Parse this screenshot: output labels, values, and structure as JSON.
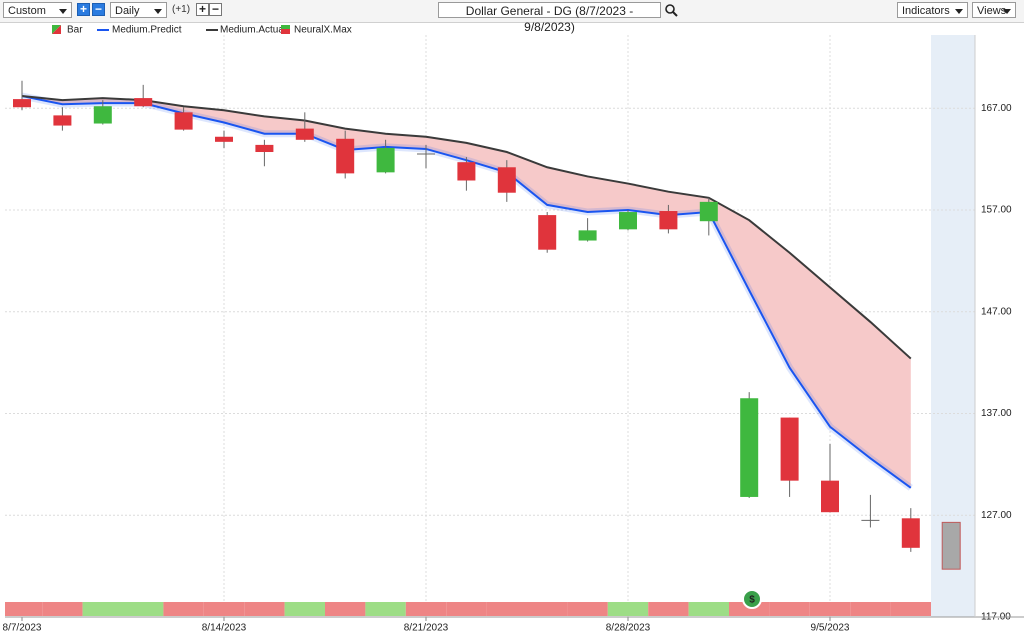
{
  "toolbar": {
    "range": "Custom",
    "interval": "Daily",
    "offset": "(+1)",
    "title": "Dollar General - DG (8/7/2023 - 9/8/2023)",
    "indicators": "Indicators",
    "views": "Views"
  },
  "chart_data": {
    "type": "candlestick",
    "categories": [
      "8/7/2023",
      null,
      null,
      null,
      null,
      "8/14/2023",
      null,
      null,
      null,
      null,
      "8/21/2023",
      null,
      null,
      null,
      null,
      "8/28/2023",
      null,
      null,
      null,
      null,
      "9/5/2023",
      null,
      null,
      null
    ],
    "ylim": [
      117,
      174.2
    ],
    "yticks": [
      {
        "value": 117,
        "label": "117.00"
      },
      {
        "value": 127,
        "label": "127.00"
      },
      {
        "value": 137,
        "label": "137.00"
      },
      {
        "value": 147,
        "label": "147.00"
      },
      {
        "value": 157,
        "label": "157.00"
      },
      {
        "value": 167,
        "label": "167.00"
      }
    ],
    "grid": true,
    "fill_between_color": "#f6c9c9",
    "forecast_color": "#a8a8a8",
    "forecast_shade": "#e6eef7",
    "series": [
      {
        "name": "Bar",
        "type": "candlestick",
        "up_color": "#3fb83f",
        "down_color": "#e0343c",
        "open": [
          167.9,
          166.3,
          165.5,
          168.0,
          166.6,
          164.2,
          163.4,
          165.0,
          164.0,
          160.7,
          162.5,
          161.7,
          161.2,
          156.5,
          154.0,
          155.1,
          156.9,
          155.9,
          128.8,
          136.6,
          130.4,
          126.5,
          126.7,
          126.3
        ],
        "high": [
          169.7,
          167.1,
          167.8,
          169.3,
          167.1,
          164.8,
          163.9,
          166.6,
          164.8,
          163.9,
          163.4,
          162.2,
          161.9,
          156.8,
          156.2,
          157.0,
          157.5,
          158.2,
          139.1,
          136.6,
          134.0,
          129.0,
          127.7,
          126.3
        ],
        "low": [
          166.8,
          164.8,
          165.4,
          167.1,
          164.8,
          163.1,
          161.3,
          163.7,
          160.1,
          160.6,
          161.1,
          158.9,
          157.8,
          152.8,
          153.9,
          155.0,
          154.7,
          154.5,
          128.7,
          128.8,
          127.3,
          125.8,
          123.4,
          121.7
        ],
        "close": [
          167.1,
          165.3,
          167.2,
          167.2,
          164.9,
          163.7,
          162.7,
          163.9,
          160.6,
          163.1,
          162.5,
          159.9,
          158.7,
          153.1,
          155.0,
          156.8,
          155.1,
          157.8,
          138.5,
          130.4,
          127.3,
          126.5,
          123.8,
          121.7
        ]
      },
      {
        "name": "Medium.Predict",
        "type": "line",
        "color": "#1a55f0",
        "values": [
          168.2,
          167.4,
          167.5,
          167.5,
          166.5,
          165.6,
          164.5,
          164.5,
          162.9,
          163.2,
          163.0,
          161.9,
          160.7,
          157.5,
          156.8,
          157.0,
          156.5,
          156.8,
          149.1,
          141.5,
          135.7,
          132.6,
          129.7,
          null
        ]
      },
      {
        "name": "Medium.Actual",
        "type": "line",
        "color": "#3a3a3a",
        "values": [
          168.2,
          167.8,
          168.0,
          167.8,
          167.2,
          166.8,
          166.2,
          165.8,
          165.0,
          164.5,
          164.2,
          163.6,
          162.7,
          161.2,
          160.3,
          159.6,
          158.8,
          158.2,
          156.0,
          152.8,
          149.4,
          146.0,
          142.4,
          null
        ]
      },
      {
        "name": "NeuralX.Max",
        "type": "strip",
        "colors": [
          "#ee8585",
          "#ee8585",
          "#9ddd86",
          "#9ddd86",
          "#ee8585",
          "#ee8585",
          "#ee8585",
          "#9ddd86",
          "#ee8585",
          "#9ddd86",
          "#ee8585",
          "#ee8585",
          "#ee8585",
          "#ee8585",
          "#ee8585",
          "#9ddd86",
          "#ee8585",
          "#9ddd86",
          "#ee8585",
          "#ee8585",
          "#ee8585",
          "#ee8585",
          "#ee8585",
          null
        ]
      }
    ]
  }
}
